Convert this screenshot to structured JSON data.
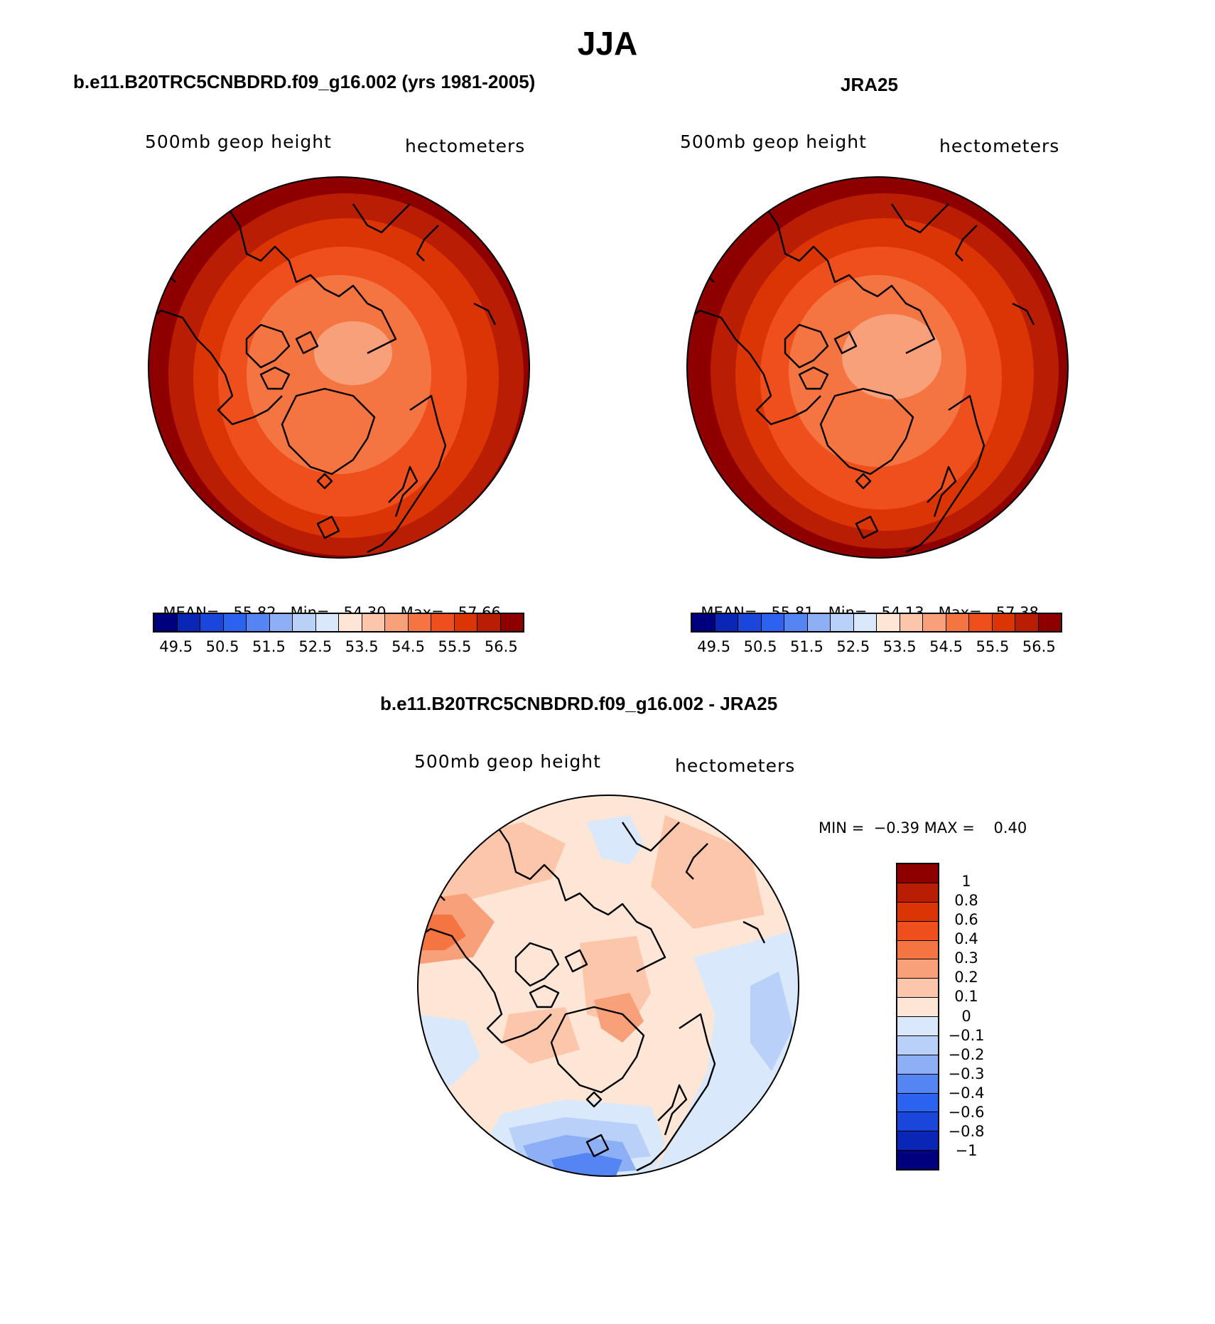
{
  "title": "JJA",
  "panels": [
    {
      "heading": "b.e11.B20TRC5CNBDRD.f09_g16.002 (yrs 1981-2005)",
      "field_label": "500mb geop height",
      "units_label": "hectometers",
      "stats": {
        "mean_label": "MEAN=",
        "mean": "55.82",
        "min_label": "Min=",
        "min": "54.30",
        "max_label": "Max=",
        "max": "57.66"
      }
    },
    {
      "heading": "JRA25",
      "field_label": "500mb geop height",
      "units_label": "hectometers",
      "stats": {
        "mean_label": "MEAN=",
        "mean": "55.81",
        "min_label": "Min=",
        "min": "54.13",
        "max_label": "Max=",
        "max": "57.38"
      }
    }
  ],
  "colorbar": {
    "colors": [
      "#00007f",
      "#0a26b4",
      "#1a46dc",
      "#2c62f0",
      "#5585f2",
      "#8caff5",
      "#b9d0f8",
      "#d9e8fb",
      "#fde6d5",
      "#fcc6aa",
      "#f8a07a",
      "#f47442",
      "#ef4f1c",
      "#db3405",
      "#b91e05",
      "#8e0000"
    ],
    "ticks": [
      "49.5",
      "50.5",
      "51.5",
      "52.5",
      "53.5",
      "54.5",
      "55.5",
      "56.5"
    ]
  },
  "diff": {
    "heading": "b.e11.B20TRC5CNBDRD.f09_g16.002 - JRA25",
    "field_label": "500mb geop height",
    "units_label": "hectometers",
    "minmax": "MIN =  −0.39 MAX =    0.40",
    "colors": [
      "#8e0000",
      "#b91e05",
      "#db3405",
      "#ef4f1c",
      "#f47442",
      "#f8a07a",
      "#fcc6aa",
      "#fde6d5",
      "#d9e8fb",
      "#b9d0f8",
      "#8caff5",
      "#5585f2",
      "#2c62f0",
      "#1a46dc",
      "#0a26b4",
      "#00007f"
    ],
    "ticks": [
      "1",
      "0.8",
      "0.6",
      "0.4",
      "0.3",
      "0.2",
      "0.1",
      "0",
      "−0.1",
      "−0.2",
      "−0.3",
      "−0.4",
      "−0.6",
      "−0.8",
      "−1"
    ]
  }
}
